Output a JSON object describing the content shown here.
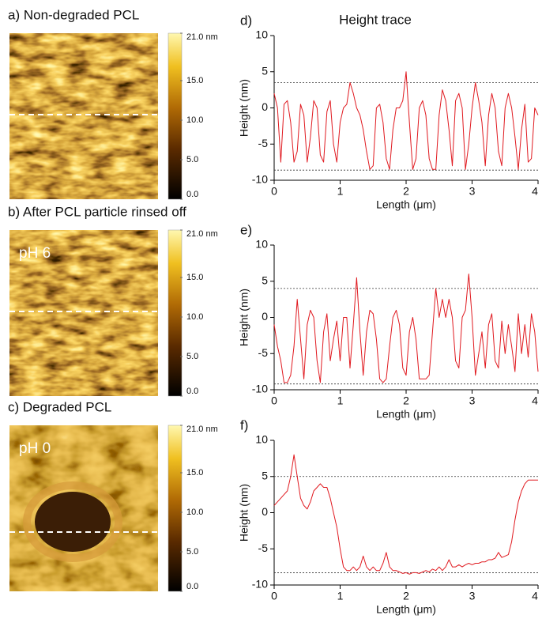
{
  "image_panels": [
    {
      "label": "a) Non-degraded PCL",
      "colorbar": {
        "lim": [
          0,
          21
        ],
        "ticks": [
          {
            "value": 21,
            "label": "21.0 nm"
          },
          {
            "value": 15,
            "label": "15.0"
          },
          {
            "value": 10,
            "label": "10.0"
          },
          {
            "value": 5,
            "label": "5.0"
          },
          {
            "value": 0,
            "label": "0.0"
          }
        ]
      }
    },
    {
      "label": "b) After PCL particle rinsed off",
      "inset": "pH 6",
      "colorbar": {
        "lim": [
          0,
          21
        ],
        "ticks": [
          {
            "value": 21,
            "label": "21.0 nm"
          },
          {
            "value": 15,
            "label": "15.0"
          },
          {
            "value": 10,
            "label": "10.0"
          },
          {
            "value": 5,
            "label": "5.0"
          },
          {
            "value": 0,
            "label": "0.0"
          }
        ]
      }
    },
    {
      "label": "c) Degraded PCL",
      "inset": "pH 0",
      "colorbar": {
        "lim": [
          0,
          21
        ],
        "ticks": [
          {
            "value": 21,
            "label": "21.0 nm"
          },
          {
            "value": 15,
            "label": "15.0"
          },
          {
            "value": 10,
            "label": "10.0"
          },
          {
            "value": 5,
            "label": "5.0"
          },
          {
            "value": 0,
            "label": "0.0"
          }
        ]
      }
    }
  ],
  "chart_data": [
    {
      "type": "line",
      "panel": "d)",
      "title": "Height trace",
      "x_label": "Length (μm)",
      "y_label": "Height (nm)",
      "xlim": [
        0,
        4
      ],
      "ylim": [
        -10,
        10
      ],
      "xticks": [
        0,
        1,
        2,
        3,
        4
      ],
      "yticks": [
        -10,
        -5,
        0,
        5,
        10
      ],
      "reference_lines": [
        3.5,
        -8.6
      ],
      "series": [
        {
          "color": "#e0191f",
          "x": [
            0,
            0.05,
            0.1,
            0.15,
            0.2,
            0.25,
            0.3,
            0.35,
            0.4,
            0.45,
            0.5,
            0.55,
            0.6,
            0.65,
            0.7,
            0.75,
            0.8,
            0.85,
            0.9,
            0.95,
            1,
            1.05,
            1.1,
            1.15,
            1.2,
            1.25,
            1.3,
            1.35,
            1.4,
            1.45,
            1.5,
            1.55,
            1.6,
            1.65,
            1.7,
            1.75,
            1.8,
            1.85,
            1.9,
            1.95,
            2,
            2.05,
            2.1,
            2.15,
            2.2,
            2.25,
            2.3,
            2.35,
            2.4,
            2.45,
            2.5,
            2.55,
            2.6,
            2.65,
            2.7,
            2.75,
            2.8,
            2.85,
            2.9,
            2.95,
            3,
            3.05,
            3.1,
            3.15,
            3.2,
            3.25,
            3.3,
            3.35,
            3.4,
            3.45,
            3.5,
            3.55,
            3.6,
            3.65,
            3.7,
            3.75,
            3.8,
            3.85,
            3.9,
            3.95,
            4
          ],
          "values": [
            2,
            0,
            -7.5,
            0.5,
            1,
            -2,
            -7.5,
            -6,
            0.5,
            -1,
            -7.5,
            -4,
            1,
            0,
            -6.5,
            -7.5,
            -0.5,
            1,
            -5,
            -7.5,
            -2,
            0,
            0.5,
            3.5,
            2,
            0,
            -1,
            -3,
            -6,
            -8.5,
            -8,
            0,
            0.5,
            -2,
            -7,
            -8.5,
            -3,
            0,
            0,
            1,
            5,
            -2,
            -8.5,
            -7,
            0,
            1,
            -1,
            -7,
            -8.5,
            -8.5,
            -1,
            2.5,
            1,
            -3,
            -8,
            1,
            2,
            0,
            -8.5,
            -5,
            0,
            3.5,
            1,
            -2,
            -8,
            -1,
            2,
            0,
            -6,
            -8,
            0,
            2,
            0,
            -4,
            -8.5,
            -3,
            0.5,
            -7.5,
            -7,
            0,
            -1
          ]
        }
      ]
    },
    {
      "type": "line",
      "panel": "e)",
      "x_label": "Length (μm)",
      "y_label": "Height (nm)",
      "xlim": [
        0,
        4
      ],
      "ylim": [
        -10,
        10
      ],
      "xticks": [
        0,
        1,
        2,
        3,
        4
      ],
      "yticks": [
        -10,
        -5,
        0,
        5,
        10
      ],
      "reference_lines": [
        4,
        -9.2
      ],
      "series": [
        {
          "color": "#e0191f",
          "x": [
            0,
            0.05,
            0.1,
            0.15,
            0.2,
            0.25,
            0.3,
            0.35,
            0.4,
            0.45,
            0.5,
            0.55,
            0.6,
            0.65,
            0.7,
            0.75,
            0.8,
            0.85,
            0.9,
            0.95,
            1,
            1.05,
            1.1,
            1.15,
            1.2,
            1.25,
            1.3,
            1.35,
            1.4,
            1.45,
            1.5,
            1.55,
            1.6,
            1.65,
            1.7,
            1.75,
            1.8,
            1.85,
            1.9,
            1.95,
            2,
            2.05,
            2.1,
            2.15,
            2.2,
            2.25,
            2.3,
            2.35,
            2.4,
            2.45,
            2.5,
            2.55,
            2.6,
            2.65,
            2.7,
            2.75,
            2.8,
            2.85,
            2.9,
            2.95,
            3,
            3.05,
            3.1,
            3.15,
            3.2,
            3.25,
            3.3,
            3.35,
            3.4,
            3.45,
            3.5,
            3.55,
            3.6,
            3.65,
            3.7,
            3.75,
            3.8,
            3.85,
            3.9,
            3.95,
            4
          ],
          "values": [
            -1,
            -4,
            -6,
            -9,
            -9,
            -8,
            -4,
            2.5,
            -3,
            -8.5,
            -1,
            1,
            0,
            -6,
            -9,
            -2,
            0.5,
            -6,
            -3,
            -0.5,
            -6,
            0,
            0,
            -7,
            -1,
            5.5,
            -2,
            -8,
            -2,
            1,
            0.5,
            -3,
            -8.5,
            -9,
            -8.5,
            -4,
            0,
            1,
            -1,
            -7,
            -8,
            -2,
            0,
            -3,
            -8.5,
            -8.5,
            -8.5,
            -8,
            -2,
            4,
            0,
            2.5,
            0,
            2.5,
            0,
            -6,
            -7,
            0,
            1,
            6,
            0,
            -8,
            -5,
            -2,
            -7,
            -1,
            0.5,
            -6,
            -7,
            -0.5,
            -5,
            -1,
            -4,
            -7.5,
            0.5,
            -5,
            -1,
            -5.5,
            0.5,
            -2,
            -7.5
          ]
        }
      ]
    },
    {
      "type": "line",
      "panel": "f)",
      "x_label": "Length (μm)",
      "y_label": "Height (nm)",
      "xlim": [
        0,
        4
      ],
      "ylim": [
        -10,
        10
      ],
      "xticks": [
        0,
        1,
        2,
        3,
        4
      ],
      "yticks": [
        -10,
        -5,
        0,
        5,
        10
      ],
      "reference_lines": [
        5,
        -8.3
      ],
      "series": [
        {
          "color": "#e0191f",
          "x": [
            0,
            0.05,
            0.1,
            0.15,
            0.2,
            0.25,
            0.3,
            0.35,
            0.4,
            0.45,
            0.5,
            0.55,
            0.6,
            0.65,
            0.7,
            0.75,
            0.8,
            0.85,
            0.9,
            0.95,
            1,
            1.05,
            1.1,
            1.15,
            1.2,
            1.25,
            1.3,
            1.35,
            1.4,
            1.45,
            1.5,
            1.55,
            1.6,
            1.65,
            1.7,
            1.75,
            1.8,
            1.85,
            1.9,
            1.95,
            2,
            2.05,
            2.1,
            2.15,
            2.2,
            2.25,
            2.3,
            2.35,
            2.4,
            2.45,
            2.5,
            2.55,
            2.6,
            2.65,
            2.7,
            2.75,
            2.8,
            2.85,
            2.9,
            2.95,
            3,
            3.05,
            3.1,
            3.15,
            3.2,
            3.25,
            3.3,
            3.35,
            3.4,
            3.45,
            3.5,
            3.55,
            3.6,
            3.65,
            3.7,
            3.75,
            3.8,
            3.85,
            3.9,
            3.95,
            4
          ],
          "values": [
            1,
            1.5,
            2,
            2.5,
            3,
            5,
            8,
            5,
            2,
            1,
            0.5,
            1.5,
            3,
            3.5,
            4,
            3.5,
            3.5,
            2,
            0,
            -2,
            -5,
            -7.5,
            -8,
            -8,
            -7.5,
            -8,
            -7.5,
            -6,
            -7.5,
            -8,
            -7.5,
            -8,
            -8,
            -7,
            -5.5,
            -7.5,
            -8,
            -8,
            -8.2,
            -8.4,
            -8.3,
            -8.5,
            -8.3,
            -8.3,
            -8.4,
            -8.2,
            -8,
            -8.2,
            -7.8,
            -8,
            -7.5,
            -8,
            -7.5,
            -6.5,
            -7.5,
            -7.5,
            -7.2,
            -7.5,
            -7.2,
            -7,
            -7.2,
            -7,
            -7,
            -6.8,
            -6.8,
            -6.5,
            -6.5,
            -6.3,
            -5.5,
            -6.2,
            -6,
            -5.8,
            -4,
            -1,
            1.5,
            3,
            4,
            4.5,
            4.5,
            4.5,
            4.5
          ]
        }
      ]
    }
  ]
}
